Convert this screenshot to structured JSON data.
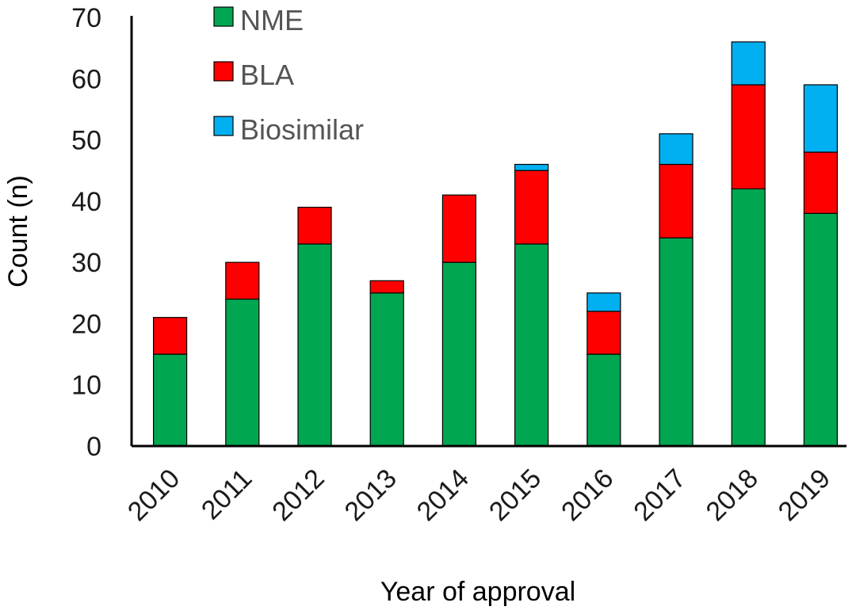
{
  "chart_data": {
    "type": "bar",
    "stacked": true,
    "title": "",
    "xlabel": "Year of approval",
    "ylabel": "Count (n)",
    "ylim": [
      0,
      70
    ],
    "yticks": [
      0,
      10,
      20,
      30,
      40,
      50,
      60,
      70
    ],
    "grid": false,
    "legend_position": "top-left",
    "categories": [
      "2010",
      "2011",
      "2012",
      "2013",
      "2014",
      "2015",
      "2016",
      "2017",
      "2018",
      "2019"
    ],
    "series": [
      {
        "name": "NME",
        "color": "#00a650",
        "values": [
          15,
          24,
          33,
          25,
          30,
          33,
          15,
          34,
          42,
          38
        ]
      },
      {
        "name": "BLA",
        "color": "#ff0000",
        "values": [
          6,
          6,
          6,
          2,
          11,
          12,
          7,
          12,
          17,
          10
        ]
      },
      {
        "name": "Biosimilar",
        "color": "#00b0f0",
        "values": [
          0,
          0,
          0,
          0,
          0,
          1,
          3,
          5,
          7,
          11
        ]
      }
    ]
  }
}
